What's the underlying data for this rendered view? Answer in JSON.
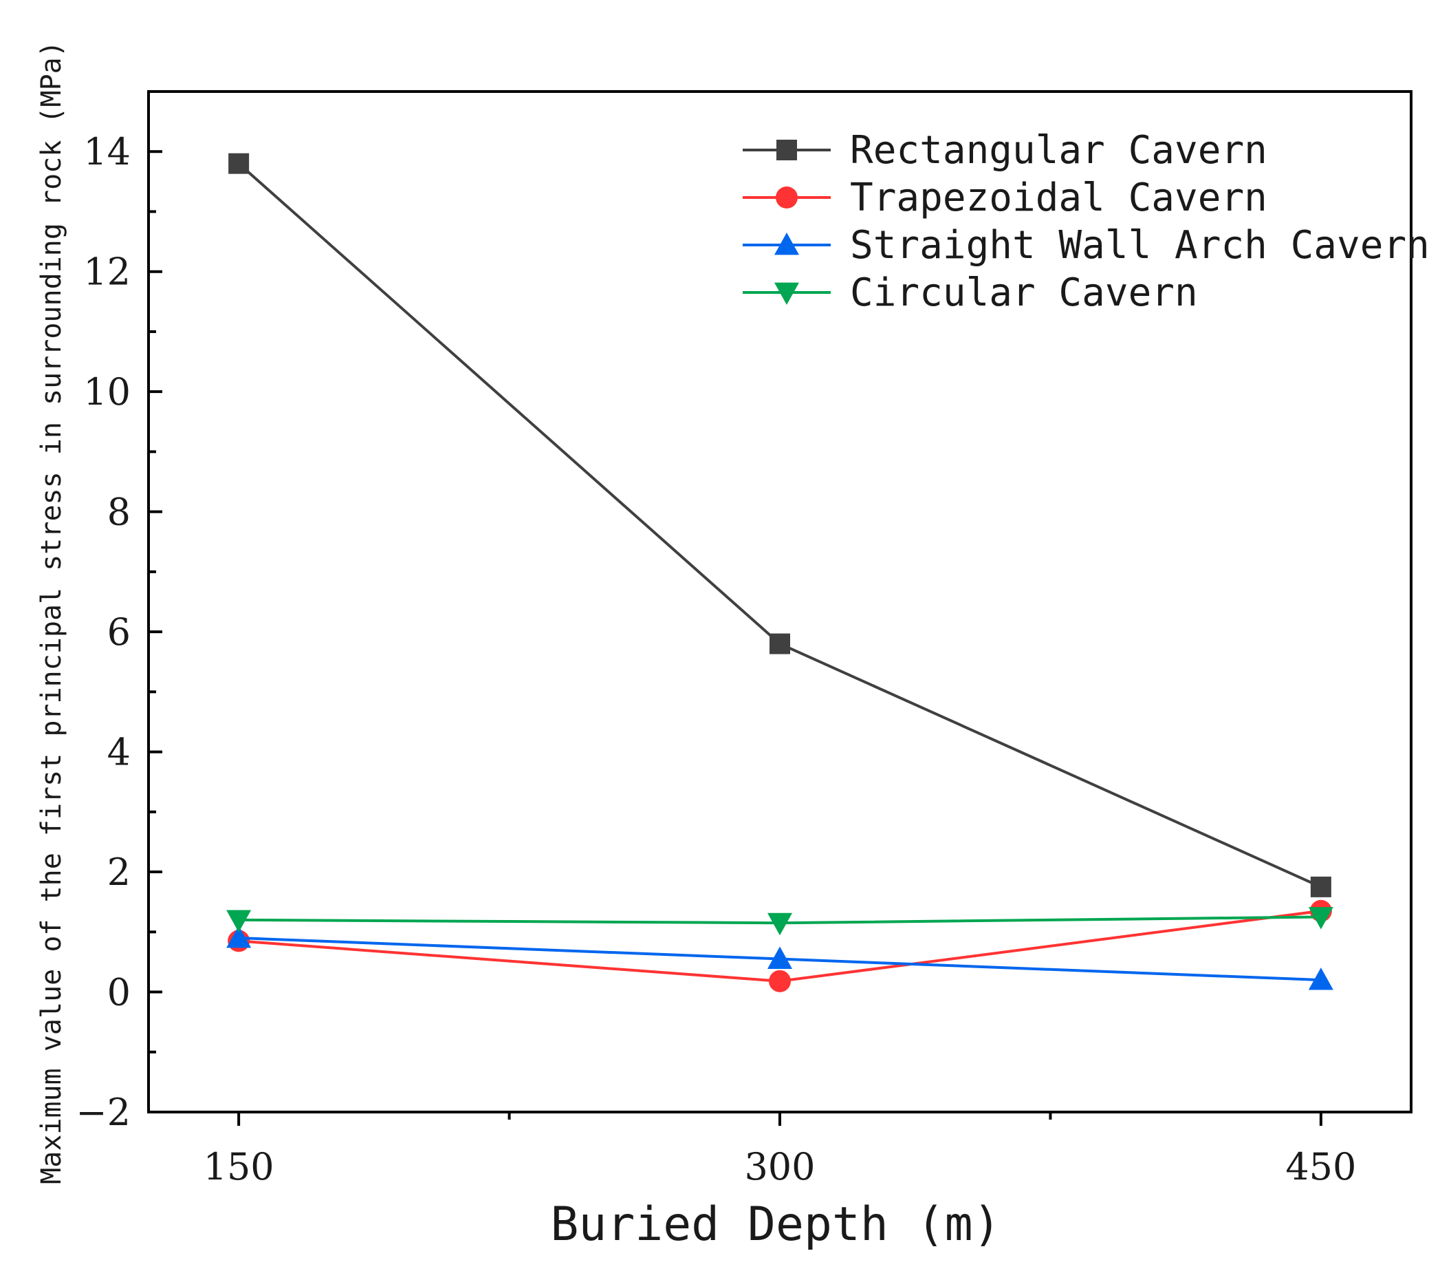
{
  "chart_data": {
    "type": "line",
    "title": "",
    "xlabel": "Buried Depth (m)",
    "ylabel": "Maximum value of the first principal stress in surrounding rock (MPa)",
    "x": [
      150,
      300,
      450
    ],
    "x_tick_labels": [
      "150",
      "300",
      "450"
    ],
    "xlim": [
      125,
      475
    ],
    "ylim": [
      -2,
      15
    ],
    "y_ticks": [
      -2,
      0,
      2,
      4,
      6,
      8,
      10,
      12,
      14
    ],
    "y_tick_labels": [
      "−2",
      "0",
      "2",
      "4",
      "6",
      "8",
      "10",
      "12",
      "14"
    ],
    "grid": false,
    "legend_position": "top-right",
    "series": [
      {
        "name": "Rectangular Cavern",
        "values": [
          13.8,
          5.8,
          1.75
        ],
        "color": "#404040",
        "marker": "square"
      },
      {
        "name": "Trapezoidal Cavern",
        "values": [
          0.85,
          0.18,
          1.35
        ],
        "color": "#ff3333",
        "marker": "circle"
      },
      {
        "name": "Straight Wall Arch Cavern",
        "values": [
          0.9,
          0.55,
          0.2
        ],
        "color": "#0066ee",
        "marker": "triangle-up"
      },
      {
        "name": "Circular Cavern",
        "values": [
          1.2,
          1.15,
          1.25
        ],
        "color": "#00a651",
        "marker": "triangle-down"
      }
    ]
  }
}
